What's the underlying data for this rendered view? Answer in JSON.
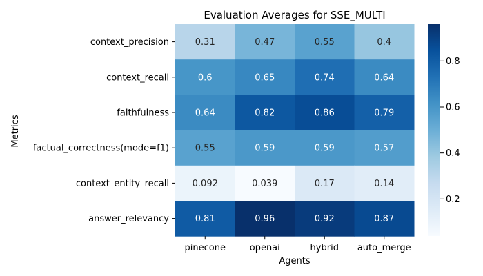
{
  "chart_data": {
    "type": "heatmap",
    "title": "Evaluation Averages for SSE_MULTI",
    "xlabel": "Agents",
    "ylabel": "Metrics",
    "x_categories": [
      "pinecone",
      "openai",
      "hybrid",
      "auto_merge"
    ],
    "y_categories": [
      "context_precision",
      "context_recall",
      "faithfulness",
      "factual_correctness(mode=f1)",
      "context_entity_recall",
      "answer_relevancy"
    ],
    "values": [
      [
        0.31,
        0.47,
        0.55,
        0.4
      ],
      [
        0.6,
        0.65,
        0.74,
        0.64
      ],
      [
        0.64,
        0.82,
        0.86,
        0.79
      ],
      [
        0.55,
        0.59,
        0.59,
        0.57
      ],
      [
        0.092,
        0.039,
        0.17,
        0.14
      ],
      [
        0.81,
        0.96,
        0.92,
        0.87
      ]
    ],
    "value_labels": [
      [
        "0.31",
        "0.47",
        "0.55",
        "0.4"
      ],
      [
        "0.6",
        "0.65",
        "0.74",
        "0.64"
      ],
      [
        "0.64",
        "0.82",
        "0.86",
        "0.79"
      ],
      [
        "0.55",
        "0.59",
        "0.59",
        "0.57"
      ],
      [
        "0.092",
        "0.039",
        "0.17",
        "0.14"
      ],
      [
        "0.81",
        "0.96",
        "0.92",
        "0.87"
      ]
    ],
    "colormap": "Blues",
    "vmin": 0.039,
    "vmax": 0.96,
    "colorbar_ticks": [
      0.2,
      0.4,
      0.6,
      0.8
    ],
    "colorbar_tick_labels": [
      "0.2",
      "0.4",
      "0.6",
      "0.8"
    ],
    "grid": false,
    "legend": "colorbar-right"
  }
}
